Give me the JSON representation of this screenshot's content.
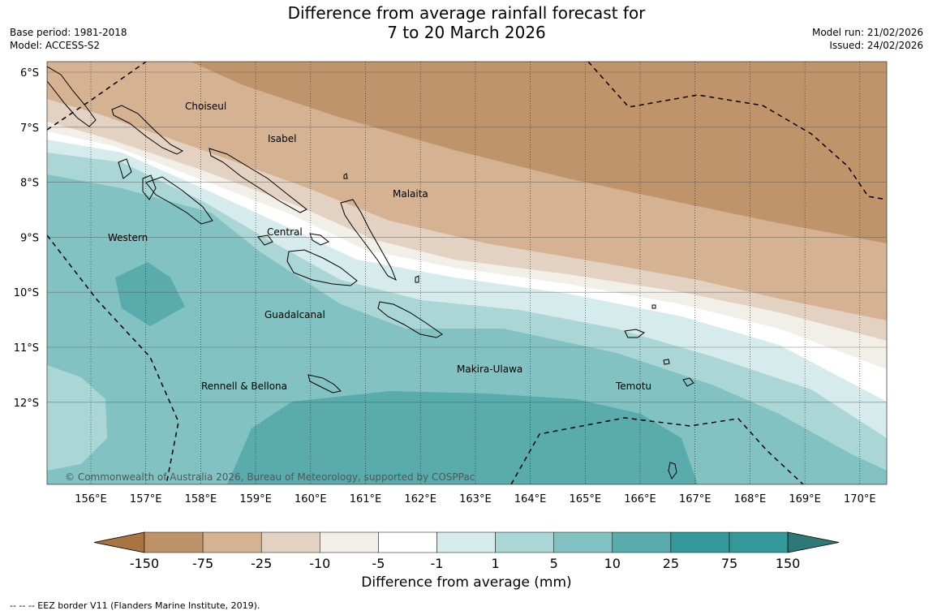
{
  "header": {
    "title_line1": "Difference from average rainfall forecast for",
    "title_line2": "7 to 20 March 2026",
    "base_period": "Base period: 1981-2018",
    "model": "Model: ACCESS-S2",
    "model_run": "Model run: 21/02/2026",
    "issued": "Issued: 24/02/2026"
  },
  "map": {
    "lat_labels": [
      "6°S",
      "7°S",
      "8°S",
      "9°S",
      "10°S",
      "11°S",
      "12°S"
    ],
    "lon_labels": [
      "156°E",
      "157°E",
      "158°E",
      "159°E",
      "160°E",
      "161°E",
      "162°E",
      "163°E",
      "164°E",
      "165°E",
      "166°E",
      "167°E",
      "168°E",
      "169°E",
      "170°E"
    ],
    "regions": [
      "Choiseul",
      "Isabel",
      "Malaita",
      "Western",
      "Central",
      "Guadalcanal",
      "Makira-Ulawa",
      "Rennell & Bellona",
      "Temotu"
    ],
    "copyright": "© Commonwealth of Australia 2026, Bureau of Meteorology, supported by COSPPac"
  },
  "colorbar": {
    "title": "Difference from average (mm)",
    "ticks": [
      "-150",
      "-75",
      "-25",
      "-10",
      "-5",
      "-1",
      "1",
      "5",
      "10",
      "25",
      "75",
      "150"
    ],
    "colors": [
      "#a87540",
      "#bf936a",
      "#d4b292",
      "#e3d1c1",
      "#f2efe9",
      "#ffffff",
      "#d6ebeb",
      "#abd6d6",
      "#82c2c2",
      "#5aabab",
      "#339999",
      "#2e7878"
    ]
  },
  "footer": {
    "eez_note": "--  --  -- EEZ border V11 (Flanders Marine Institute, 2019)."
  }
}
